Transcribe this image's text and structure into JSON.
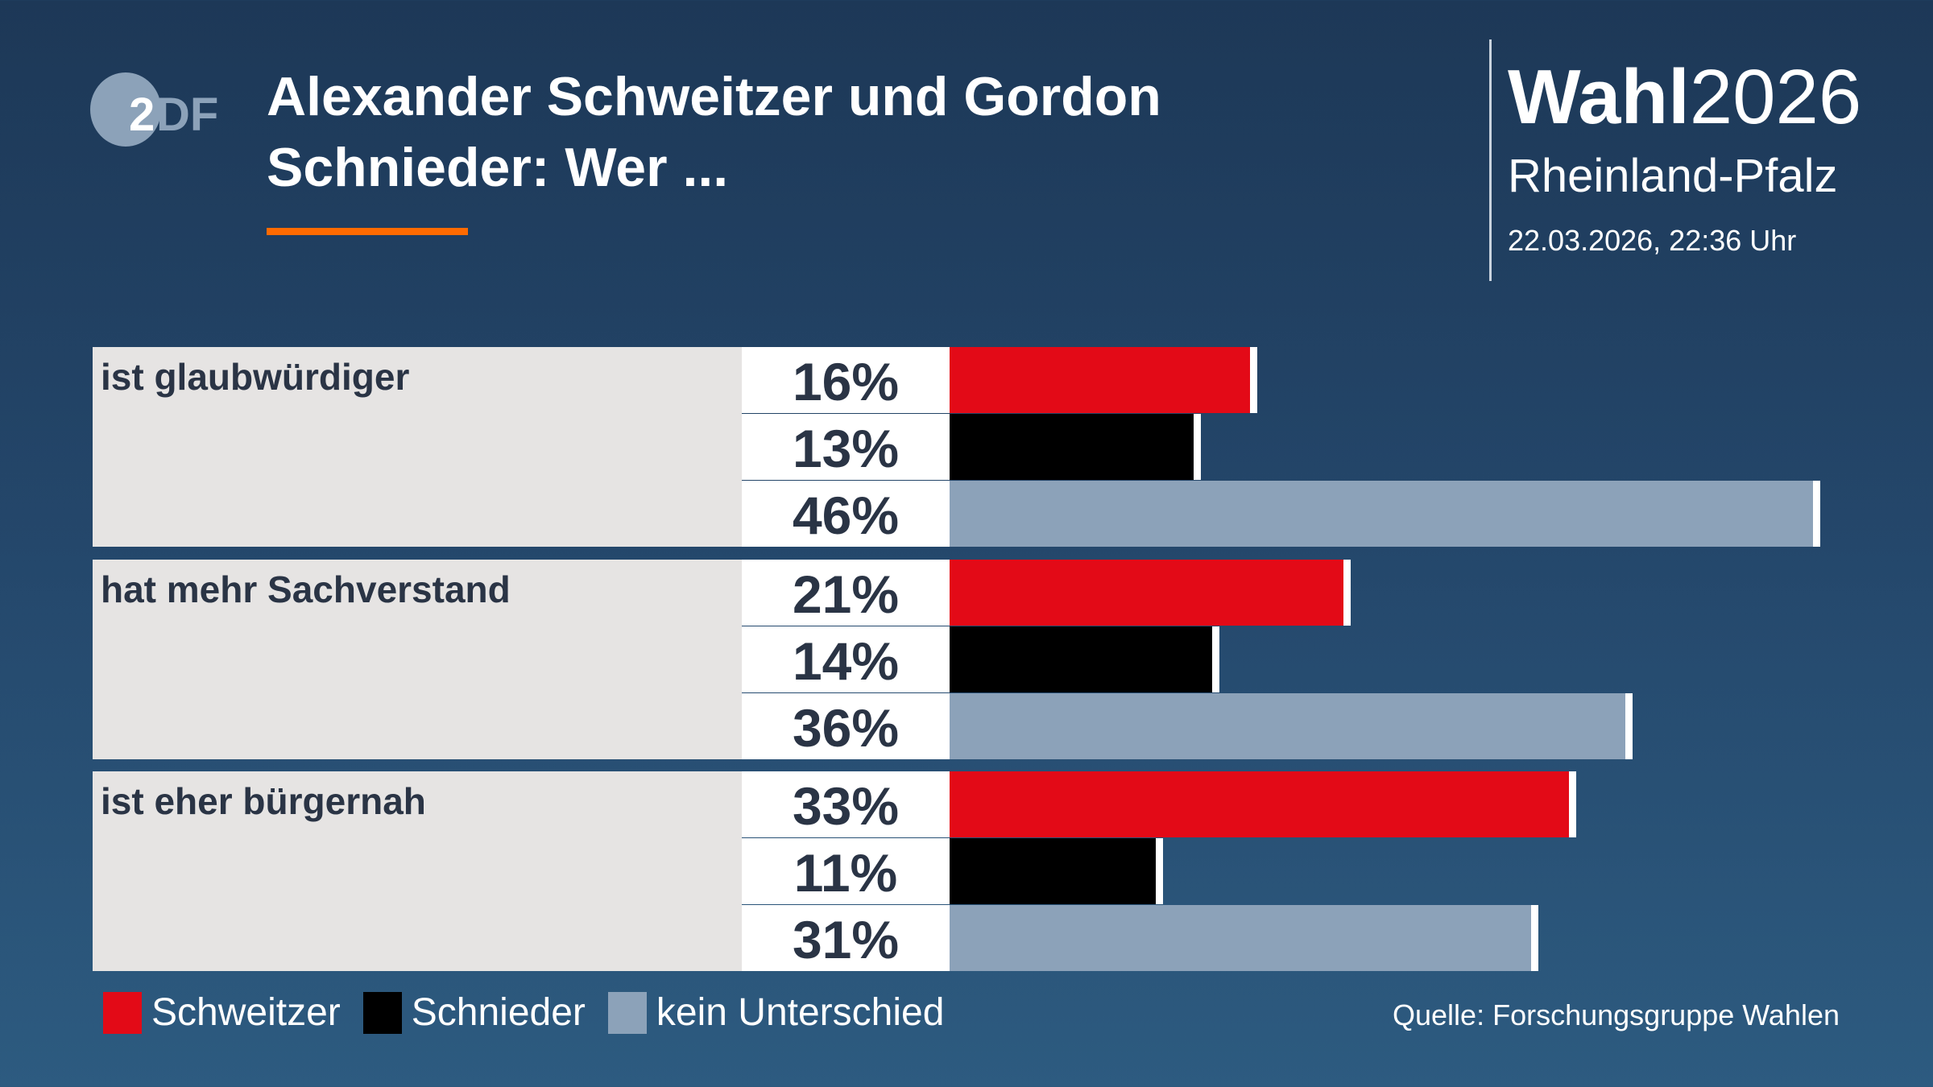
{
  "header": {
    "logo": "ZDF",
    "title": "Alexander Schweitzer und Gordon Schnieder: Wer ...",
    "brand_bold": "Wahl",
    "brand_year": "2026",
    "region": "Rheinland-Pfalz",
    "date": "22.03.2026, 22:36 Uhr"
  },
  "chart_data": {
    "type": "bar",
    "orientation": "horizontal",
    "unit": "%",
    "xlim": [
      0,
      50
    ],
    "categories": [
      "ist glaubwürdiger",
      "hat mehr Sachverstand",
      "ist eher bürgernah"
    ],
    "series": [
      {
        "name": "Schweitzer",
        "color": "#e30a17",
        "values": [
          16,
          21,
          33
        ],
        "labels": [
          "16%",
          "21%",
          "33%"
        ]
      },
      {
        "name": "Schnieder",
        "color": "#000000",
        "values": [
          13,
          14,
          11
        ],
        "labels": [
          "13%",
          "14%",
          "11%"
        ]
      },
      {
        "name": "kein Unterschied",
        "color": "#8ca2b9",
        "values": [
          46,
          36,
          31
        ],
        "labels": [
          "46%",
          "36%",
          "31%"
        ]
      }
    ]
  },
  "legend": [
    "Schweitzer",
    "Schnieder",
    "kein Unterschied"
  ],
  "source": "Quelle: Forschungsgruppe Wahlen"
}
